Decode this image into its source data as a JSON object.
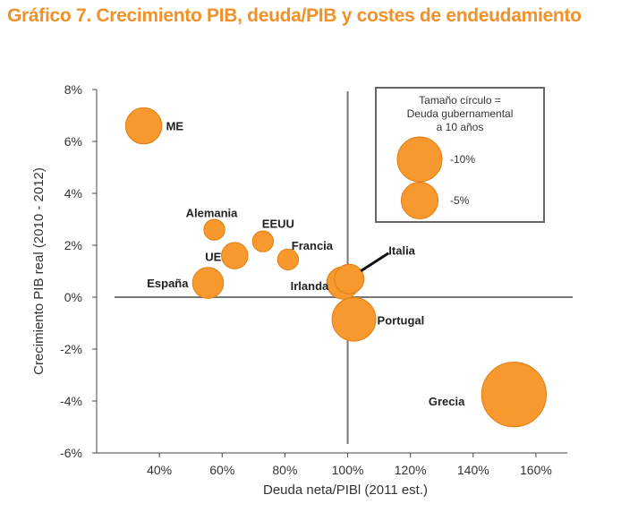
{
  "chart_data": {
    "type": "scatter",
    "title": "Gráfico 7. Crecimiento PIB, deuda/PIB y costes de endeudamiento",
    "xlabel": "Deuda neta/PIBl (2011 est.)",
    "ylabel": "Crecimiento PIB real (2010 - 2012)",
    "xlim": [
      20,
      170
    ],
    "ylim": [
      -6,
      8
    ],
    "x_ticks": [
      40,
      60,
      80,
      100,
      120,
      140,
      160
    ],
    "x_tick_labels": [
      "40%",
      "60%",
      "80%",
      "100%",
      "120%",
      "140%",
      "160%"
    ],
    "y_ticks": [
      8,
      6,
      4,
      2,
      0,
      -2,
      -4,
      -6
    ],
    "y_tick_labels": [
      "8%",
      "6%",
      "4%",
      "2%",
      "0%",
      "-2%",
      "-4%",
      "-6%"
    ],
    "reference_lines": {
      "x": 100,
      "y": 0
    },
    "points": [
      {
        "name": "ME",
        "x": 35,
        "y": 6.6,
        "bubble": 1.5
      },
      {
        "name": "Alemania",
        "x": 57.5,
        "y": 2.6,
        "bubble": 0.5
      },
      {
        "name": "EEUU",
        "x": 73,
        "y": 2.15,
        "bubble": 0.5
      },
      {
        "name": "Francia",
        "x": 81,
        "y": 1.45,
        "bubble": 0.5
      },
      {
        "name": "UE",
        "x": 64,
        "y": 1.6,
        "bubble": 0.8
      },
      {
        "name": "España",
        "x": 55.5,
        "y": 0.55,
        "bubble": 1.1
      },
      {
        "name": "Irlanda",
        "x": 98.5,
        "y": 0.55,
        "bubble": 1.2
      },
      {
        "name": "Italia",
        "x": 100.5,
        "y": 0.7,
        "bubble": 1.0
      },
      {
        "name": "Portugal",
        "x": 102,
        "y": -0.85,
        "bubble": 2.2
      },
      {
        "name": "Grecia",
        "x": 153,
        "y": -3.75,
        "bubble": 4.8
      }
    ],
    "legend": {
      "title": "Tamaño círculo = Deuda gubernamental a 10 años",
      "title_lines": [
        "Tamaño círculo =",
        "Deuda gubernamental",
        "a 10 años"
      ],
      "entries": [
        {
          "label": "-10%",
          "bubble": 2.3
        },
        {
          "label": "-5%",
          "bubble": 1.55
        }
      ],
      "position": "top-right"
    },
    "bubble_color": "#f7992e",
    "bubble_stroke": "#e07d12"
  }
}
